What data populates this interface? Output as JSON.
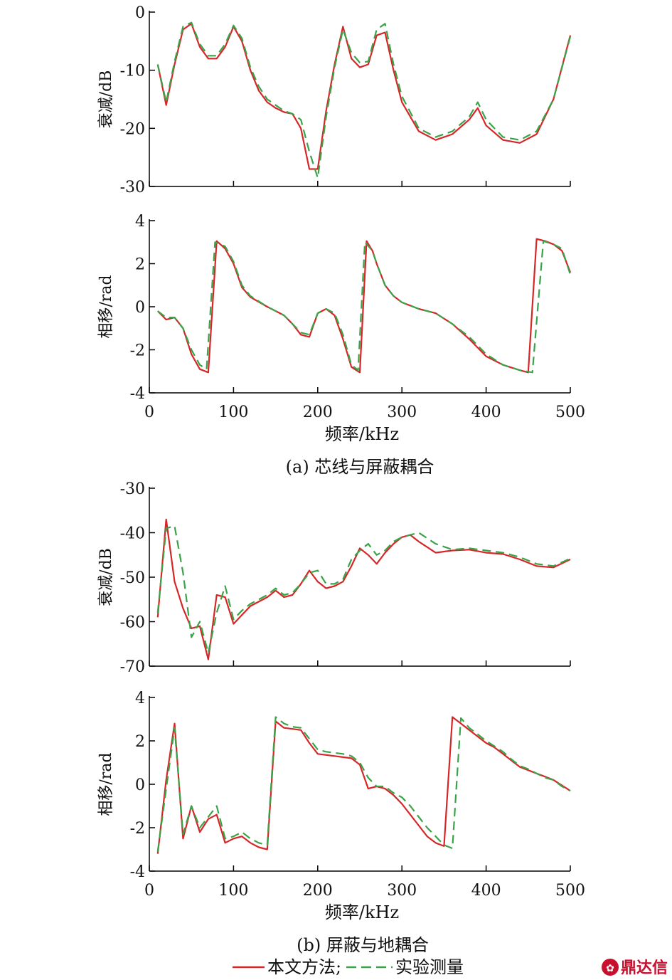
{
  "figure": {
    "caption_a": "(a) 芯线与屏蔽耦合",
    "caption_b": "(b) 屏蔽与地耦合",
    "legend_model": "本文方法;",
    "legend_exp": "实验测量",
    "watermark": "鼎达信"
  },
  "colors": {
    "model": "#d62728",
    "experiment": "#3aa34a",
    "axis": "#000000"
  },
  "chart_data": [
    {
      "type": "line",
      "panel": "a-top",
      "xlabel": "",
      "ylabel": "衰减/dB",
      "xlim": [
        0,
        500
      ],
      "ylim": [
        -30,
        0
      ],
      "xticks": [
        0,
        100,
        200,
        300,
        400,
        500
      ],
      "yticks": [
        0,
        -10,
        -20,
        -30
      ],
      "show_xtick_labels": false,
      "series": [
        {
          "name": "本文方法",
          "style": "solid",
          "x": [
            10,
            20,
            30,
            40,
            50,
            60,
            70,
            80,
            90,
            100,
            110,
            120,
            130,
            140,
            150,
            160,
            170,
            180,
            190,
            200,
            210,
            220,
            230,
            240,
            250,
            260,
            270,
            280,
            290,
            300,
            320,
            340,
            360,
            380,
            390,
            400,
            420,
            440,
            460,
            480,
            500
          ],
          "y": [
            -9,
            -16,
            -9,
            -3,
            -2,
            -6,
            -8,
            -8,
            -6,
            -2.5,
            -5,
            -10,
            -13.5,
            -15.5,
            -16.5,
            -17.2,
            -17.5,
            -20,
            -27,
            -27,
            -17,
            -9,
            -2.5,
            -8,
            -9.5,
            -9,
            -4,
            -3.5,
            -10,
            -15.5,
            -20.5,
            -22,
            -21,
            -18.5,
            -16.5,
            -19.5,
            -22,
            -22.5,
            -21,
            -15,
            -4
          ]
        },
        {
          "name": "实验测量",
          "style": "dashed",
          "x": [
            10,
            20,
            30,
            40,
            50,
            60,
            70,
            80,
            90,
            100,
            110,
            120,
            130,
            140,
            150,
            160,
            170,
            180,
            190,
            200,
            210,
            220,
            230,
            240,
            250,
            260,
            270,
            280,
            290,
            300,
            320,
            340,
            360,
            380,
            390,
            400,
            420,
            440,
            460,
            480,
            500
          ],
          "y": [
            -9,
            -15.5,
            -8.5,
            -2.5,
            -1.8,
            -5.5,
            -7.5,
            -7.5,
            -5.5,
            -2.3,
            -4.5,
            -9.5,
            -12.8,
            -15,
            -16,
            -17,
            -17.5,
            -18.5,
            -24,
            -28.5,
            -18,
            -9.5,
            -3,
            -7,
            -8.7,
            -8.5,
            -3,
            -2,
            -9,
            -14.5,
            -20,
            -21.5,
            -20.5,
            -18,
            -15.5,
            -18.5,
            -21.5,
            -22,
            -20.5,
            -15,
            -4.2
          ]
        }
      ]
    },
    {
      "type": "line",
      "panel": "a-bottom",
      "xlabel": "频率/kHz",
      "ylabel": "相移/rad",
      "xlim": [
        0,
        500
      ],
      "ylim": [
        -4,
        4
      ],
      "xticks": [
        0,
        100,
        200,
        300,
        400,
        500
      ],
      "yticks": [
        4,
        2,
        0,
        -2,
        -4
      ],
      "show_xtick_labels": true,
      "series": [
        {
          "name": "本文方法",
          "style": "solid",
          "x": [
            10,
            20,
            30,
            40,
            50,
            60,
            70,
            80,
            90,
            100,
            110,
            120,
            140,
            160,
            170,
            180,
            190,
            200,
            210,
            220,
            230,
            240,
            250,
            258,
            265,
            270,
            280,
            290,
            300,
            320,
            340,
            360,
            380,
            400,
            420,
            440,
            450,
            460,
            470,
            480,
            490,
            500
          ],
          "y": [
            -0.2,
            -0.6,
            -0.5,
            -1.0,
            -2.2,
            -2.9,
            -3.05,
            3.05,
            2.7,
            2.0,
            0.9,
            0.45,
            0.0,
            -0.4,
            -0.8,
            -1.3,
            -1.4,
            -0.3,
            -0.1,
            -0.4,
            -1.5,
            -2.8,
            -3.05,
            3.05,
            2.6,
            2.0,
            1.0,
            0.5,
            0.2,
            -0.1,
            -0.3,
            -0.8,
            -1.5,
            -2.3,
            -2.7,
            -2.95,
            -3.05,
            3.15,
            3.05,
            2.9,
            2.6,
            1.6
          ]
        },
        {
          "name": "实验测量",
          "style": "dashed",
          "x": [
            10,
            20,
            30,
            40,
            50,
            60,
            68,
            78,
            90,
            100,
            110,
            120,
            140,
            160,
            170,
            180,
            190,
            200,
            210,
            220,
            230,
            240,
            248,
            256,
            265,
            270,
            280,
            290,
            300,
            320,
            340,
            360,
            380,
            400,
            420,
            440,
            455,
            468,
            480,
            490,
            500
          ],
          "y": [
            -0.2,
            -0.5,
            -0.5,
            -1.0,
            -2.0,
            -2.7,
            -2.9,
            3.0,
            2.8,
            2.1,
            1.0,
            0.5,
            0.0,
            -0.4,
            -0.8,
            -1.2,
            -1.3,
            -0.3,
            -0.1,
            -0.3,
            -1.3,
            -2.7,
            -2.95,
            3.0,
            2.6,
            2.0,
            1.0,
            0.5,
            0.2,
            -0.1,
            -0.3,
            -0.8,
            -1.4,
            -2.2,
            -2.7,
            -2.95,
            -3.05,
            3.05,
            2.9,
            2.7,
            1.5
          ]
        }
      ]
    },
    {
      "type": "line",
      "panel": "b-top",
      "xlabel": "",
      "ylabel": "衰减/dB",
      "xlim": [
        0,
        500
      ],
      "ylim": [
        -70,
        -30
      ],
      "xticks": [
        0,
        100,
        200,
        300,
        400,
        500
      ],
      "yticks": [
        -30,
        -40,
        -50,
        -60,
        -70
      ],
      "show_xtick_labels": false,
      "series": [
        {
          "name": "本文方法",
          "style": "solid",
          "x": [
            10,
            20,
            30,
            40,
            50,
            60,
            70,
            80,
            90,
            100,
            110,
            120,
            130,
            140,
            150,
            160,
            170,
            180,
            190,
            200,
            210,
            220,
            230,
            240,
            250,
            260,
            270,
            280,
            290,
            300,
            310,
            320,
            340,
            360,
            380,
            400,
            420,
            440,
            460,
            480,
            500
          ],
          "y": [
            -59,
            -37,
            -51,
            -57,
            -61.5,
            -61,
            -68.5,
            -54,
            -54.5,
            -60.5,
            -58.5,
            -56.5,
            -55.5,
            -54.5,
            -53,
            -54.5,
            -54,
            -51.5,
            -48.5,
            -51,
            -52.5,
            -52,
            -51,
            -47.5,
            -43.5,
            -45,
            -47,
            -44.5,
            -42.5,
            -41,
            -40.5,
            -42,
            -44.5,
            -44,
            -43.8,
            -44.5,
            -44.8,
            -46,
            -47.5,
            -47.8,
            -46
          ]
        },
        {
          "name": "实验测量",
          "style": "dashed",
          "x": [
            10,
            20,
            30,
            40,
            50,
            60,
            70,
            80,
            90,
            100,
            110,
            120,
            130,
            140,
            150,
            160,
            170,
            180,
            190,
            200,
            210,
            220,
            230,
            240,
            250,
            260,
            270,
            280,
            290,
            300,
            310,
            320,
            340,
            360,
            380,
            400,
            420,
            440,
            460,
            480,
            500
          ],
          "y": [
            -58,
            -39,
            -38.5,
            -49,
            -63.5,
            -60,
            -67,
            -58,
            -52,
            -59.5,
            -57.5,
            -56,
            -55,
            -54,
            -52.5,
            -54,
            -53.5,
            -51.5,
            -49,
            -48.5,
            -51.5,
            -51.5,
            -50.5,
            -46,
            -44,
            -42.5,
            -45,
            -44,
            -42,
            -41,
            -40.5,
            -40,
            -42.5,
            -43.8,
            -43.5,
            -44,
            -44.5,
            -45.5,
            -47,
            -47.5,
            -45.8
          ]
        }
      ]
    },
    {
      "type": "line",
      "panel": "b-bottom",
      "xlabel": "频率/kHz",
      "ylabel": "相移/rad",
      "xlim": [
        0,
        500
      ],
      "ylim": [
        -4,
        4
      ],
      "xticks": [
        0,
        100,
        200,
        300,
        400,
        500
      ],
      "yticks": [
        4,
        2,
        0,
        -2,
        -4
      ],
      "show_xtick_labels": true,
      "series": [
        {
          "name": "本文方法",
          "style": "solid",
          "x": [
            10,
            20,
            30,
            40,
            50,
            60,
            70,
            80,
            90,
            100,
            110,
            120,
            130,
            140,
            150,
            160,
            170,
            180,
            190,
            200,
            210,
            220,
            230,
            240,
            250,
            260,
            270,
            280,
            290,
            300,
            310,
            320,
            330,
            340,
            350,
            360,
            370,
            380,
            390,
            400,
            410,
            420,
            430,
            440,
            450,
            460,
            470,
            480,
            490,
            500
          ],
          "y": [
            -3.2,
            0.2,
            2.8,
            -2.5,
            -1.0,
            -2.2,
            -1.6,
            -1.4,
            -2.7,
            -2.5,
            -2.4,
            -2.7,
            -2.9,
            -3.0,
            2.9,
            2.6,
            2.55,
            2.5,
            1.9,
            1.4,
            1.35,
            1.3,
            1.25,
            1.2,
            0.9,
            -0.2,
            -0.1,
            -0.2,
            -0.5,
            -0.9,
            -1.4,
            -1.9,
            -2.4,
            -2.7,
            -2.85,
            3.1,
            2.8,
            2.5,
            2.2,
            1.9,
            1.7,
            1.4,
            1.1,
            0.8,
            0.65,
            0.5,
            0.35,
            0.2,
            -0.05,
            -0.3
          ]
        },
        {
          "name": "实验测量",
          "style": "dashed",
          "x": [
            10,
            20,
            30,
            40,
            50,
            60,
            70,
            80,
            90,
            100,
            110,
            120,
            130,
            140,
            150,
            160,
            170,
            180,
            190,
            200,
            210,
            220,
            230,
            240,
            250,
            260,
            270,
            280,
            290,
            300,
            310,
            320,
            330,
            340,
            350,
            360,
            370,
            380,
            390,
            400,
            410,
            420,
            430,
            440,
            450,
            460,
            470,
            480,
            490,
            500
          ],
          "y": [
            -3.1,
            -0.2,
            2.6,
            -2.3,
            -1.0,
            -2.0,
            -1.5,
            -1.0,
            -2.5,
            -2.4,
            -2.2,
            -2.5,
            -2.7,
            -2.8,
            3.1,
            2.8,
            2.65,
            2.6,
            2.1,
            1.6,
            1.5,
            1.45,
            1.4,
            1.3,
            1.0,
            0.3,
            -0.1,
            -0.1,
            -0.4,
            -0.6,
            -1.0,
            -1.5,
            -2.0,
            -2.4,
            -2.8,
            -2.95,
            3.05,
            2.6,
            2.3,
            2.0,
            1.75,
            1.5,
            1.15,
            0.85,
            0.7,
            0.5,
            0.3,
            0.2,
            -0.1,
            -0.3
          ]
        }
      ]
    }
  ]
}
